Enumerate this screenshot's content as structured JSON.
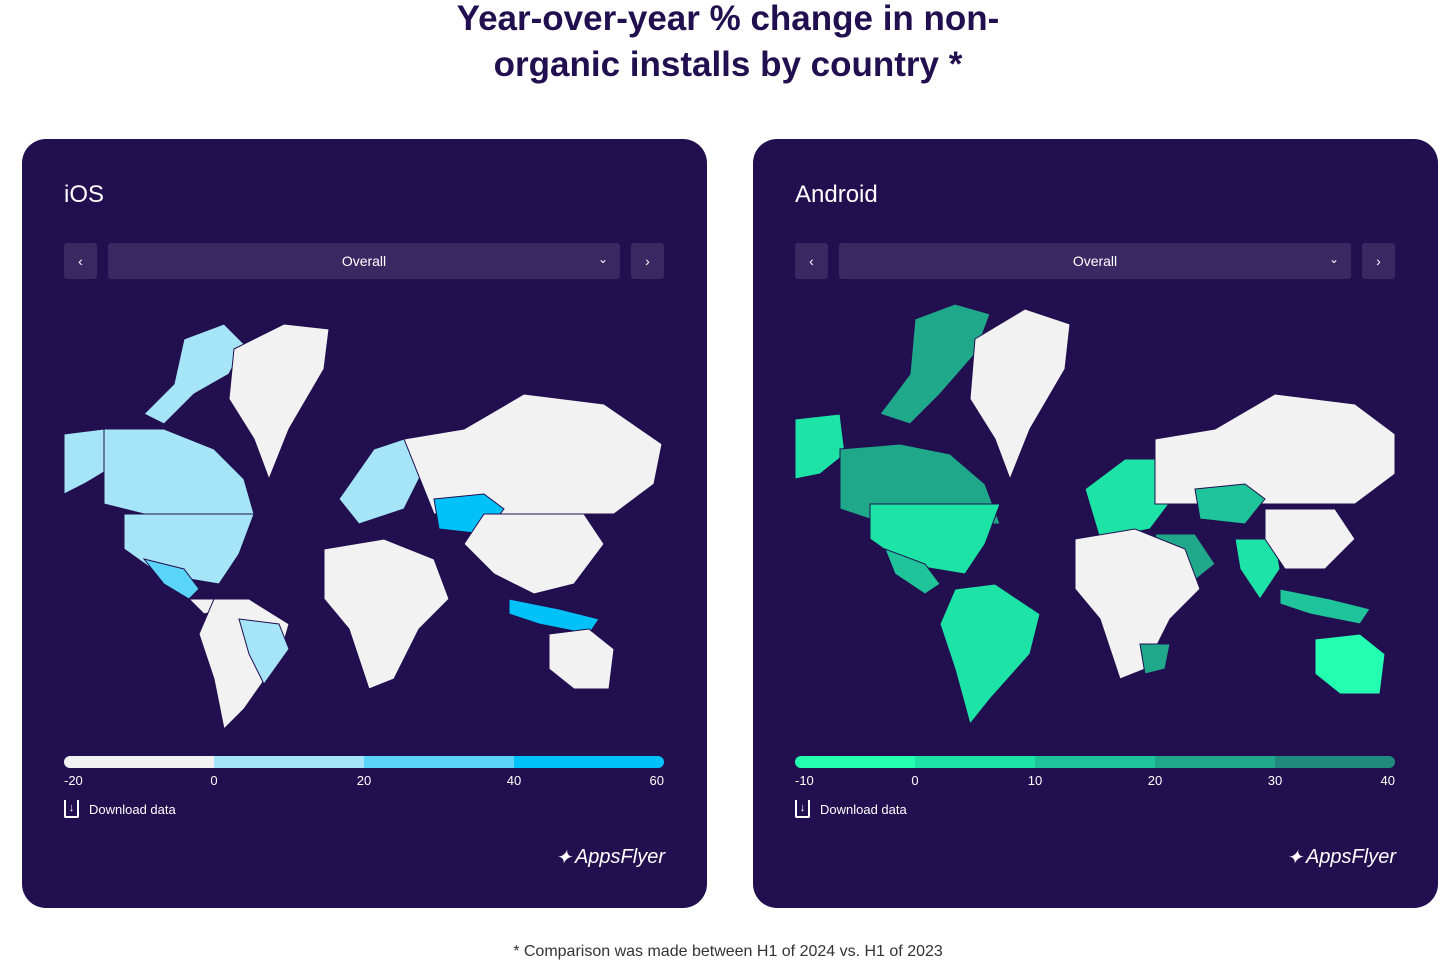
{
  "title": "Year-over-year % change in non-organic installs by country *",
  "title_line1": "Year-over-year % change in non-",
  "title_line2": "organic installs by country *",
  "footnote": "* Comparison was made between H1 of 2024 vs. H1 of 2023",
  "chart_data": [
    {
      "type": "choropleth map",
      "title": "iOS",
      "filter": "Overall",
      "legend": {
        "ticks": [
          "-20",
          "0",
          "20",
          "40",
          "60"
        ],
        "colors": [
          "#f2f2f2",
          "#a6e4f7",
          "#5ad4f9",
          "#00c2f9"
        ]
      }
    },
    {
      "type": "choropleth map",
      "title": "Android",
      "filter": "Overall",
      "legend": {
        "ticks": [
          "-10",
          "0",
          "10",
          "20",
          "30",
          "40"
        ],
        "colors": [
          "#24ffb2",
          "#1ee3a6",
          "#1fc49a",
          "#20a88b",
          "#208a7e"
        ]
      }
    }
  ],
  "ui": {
    "prev": "‹",
    "next": "›",
    "chevron": "⌄",
    "download": "Download data",
    "logo": "AppsFlyer"
  }
}
